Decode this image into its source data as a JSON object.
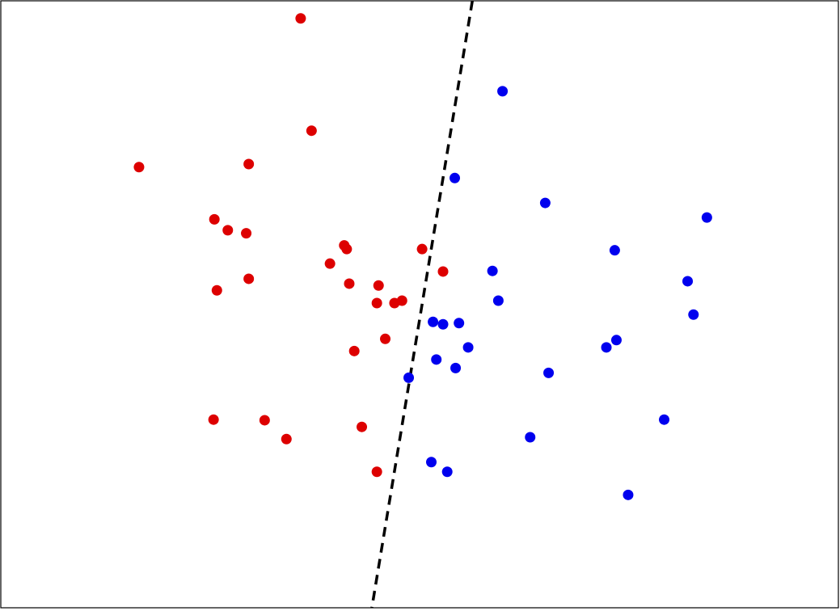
{
  "chart_data": {
    "type": "scatter",
    "title": "",
    "xlabel": "",
    "ylabel": "",
    "xlim": [
      0,
      10
    ],
    "ylim": [
      0,
      10
    ],
    "grid": false,
    "axes_ticks": false,
    "series": [
      {
        "color": "#dd0000",
        "points": [
          [
            3.58,
            9.71
          ],
          [
            3.71,
            7.86
          ],
          [
            1.65,
            7.26
          ],
          [
            2.96,
            7.31
          ],
          [
            2.55,
            6.4
          ],
          [
            2.71,
            6.22
          ],
          [
            2.93,
            6.17
          ],
          [
            4.1,
            5.97
          ],
          [
            4.13,
            5.91
          ],
          [
            5.03,
            5.91
          ],
          [
            3.93,
            5.67
          ],
          [
            5.28,
            5.54
          ],
          [
            2.96,
            5.42
          ],
          [
            2.58,
            5.23
          ],
          [
            4.16,
            5.34
          ],
          [
            4.51,
            5.31
          ],
          [
            4.49,
            5.02
          ],
          [
            4.7,
            5.02
          ],
          [
            4.79,
            5.06
          ],
          [
            4.59,
            4.43
          ],
          [
            4.22,
            4.23
          ],
          [
            2.54,
            3.1
          ],
          [
            3.15,
            3.09
          ],
          [
            3.41,
            2.78
          ],
          [
            4.31,
            2.98
          ],
          [
            4.49,
            2.24
          ]
        ]
      },
      {
        "color": "#0000ee",
        "points": [
          [
            5.99,
            8.51
          ],
          [
            5.42,
            7.08
          ],
          [
            6.5,
            6.67
          ],
          [
            8.43,
            6.43
          ],
          [
            7.33,
            5.89
          ],
          [
            5.87,
            5.55
          ],
          [
            8.2,
            5.38
          ],
          [
            5.94,
            5.06
          ],
          [
            8.27,
            4.83
          ],
          [
            5.16,
            4.71
          ],
          [
            5.28,
            4.67
          ],
          [
            5.47,
            4.69
          ],
          [
            5.58,
            4.29
          ],
          [
            7.35,
            4.41
          ],
          [
            7.23,
            4.29
          ],
          [
            5.2,
            4.09
          ],
          [
            5.43,
            3.95
          ],
          [
            6.54,
            3.87
          ],
          [
            4.87,
            3.79
          ],
          [
            7.92,
            3.1
          ],
          [
            6.32,
            2.81
          ],
          [
            5.14,
            2.4
          ],
          [
            5.33,
            2.24
          ],
          [
            7.49,
            1.86
          ]
        ]
      }
    ],
    "decision_boundary": {
      "style": "dashed",
      "color": "#000000",
      "points": [
        [
          5.63,
          10.0
        ],
        [
          4.43,
          0.0
        ]
      ]
    }
  }
}
